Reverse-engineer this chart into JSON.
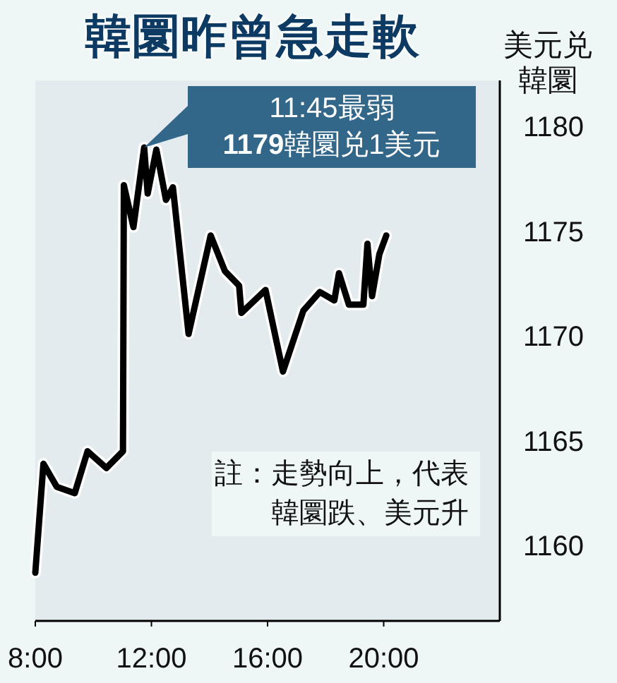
{
  "chart_data": {
    "type": "line",
    "title": "韓圜昨曾急走軟",
    "ylabel": "美元兑韓圜",
    "x": [
      8.0,
      8.28,
      8.74,
      9.36,
      9.8,
      10.45,
      11.02,
      11.05,
      11.38,
      11.75,
      11.87,
      12.17,
      12.5,
      12.74,
      13.28,
      14.04,
      14.53,
      15.02,
      15.1,
      15.93,
      16.53,
      17.23,
      17.8,
      18.3,
      18.46,
      18.8,
      19.3,
      19.44,
      19.6,
      19.85,
      20.09
    ],
    "values": [
      1158.7,
      1163.9,
      1162.8,
      1162.5,
      1164.5,
      1163.7,
      1164.5,
      1177.2,
      1175.2,
      1179,
      1176.8,
      1178.9,
      1176.5,
      1177.1,
      1170.1,
      1174.8,
      1173.1,
      1172.4,
      1171.1,
      1172.2,
      1168.3,
      1171.2,
      1172.1,
      1171.7,
      1173.0,
      1171.5,
      1171.5,
      1174.4,
      1171.9,
      1173.9,
      1174.8
    ],
    "color": "#000000",
    "xlim": [
      8,
      24
    ],
    "ylim": [
      1156.4,
      1182.2
    ],
    "xticks": [
      {
        "value": 8,
        "label": "8:00"
      },
      {
        "value": 12,
        "label": "12:00"
      },
      {
        "value": 16,
        "label": "16:00"
      },
      {
        "value": 20,
        "label": "20:00"
      }
    ],
    "yticks": [
      1160,
      1165,
      1170,
      1175,
      1180
    ],
    "annotations": [
      {
        "text": "11:45最弱 **1179**韓圜兑1美元",
        "x": 11.75,
        "y": 1179
      },
      "註：走勢向上，代表韓圜跌、美元升"
    ]
  }
}
